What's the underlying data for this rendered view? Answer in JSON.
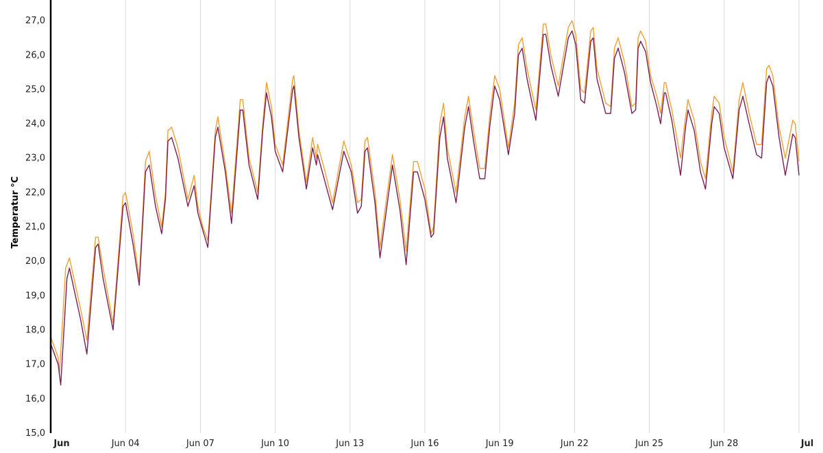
{
  "chart_data": {
    "type": "line",
    "ylabel": "Temperatur °C",
    "ylim": [
      15,
      27.6
    ],
    "y_ticks": [
      "15,0",
      "16,0",
      "17,0",
      "18,0",
      "19,0",
      "20,0",
      "21,0",
      "22,0",
      "23,0",
      "24,0",
      "25,0",
      "26,0",
      "27,0"
    ],
    "x_range_days": [
      1,
      31
    ],
    "x_ticks": [
      {
        "label": "Jun",
        "day": 1,
        "bold": true
      },
      {
        "label": "Jun 04",
        "day": 4,
        "bold": false
      },
      {
        "label": "Jun 07",
        "day": 7,
        "bold": false
      },
      {
        "label": "Jun 10",
        "day": 10,
        "bold": false
      },
      {
        "label": "Jun 13",
        "day": 13,
        "bold": false
      },
      {
        "label": "Jun 16",
        "day": 16,
        "bold": false
      },
      {
        "label": "Jun 19",
        "day": 19,
        "bold": false
      },
      {
        "label": "Jun 22",
        "day": 22,
        "bold": false
      },
      {
        "label": "Jun 25",
        "day": 25,
        "bold": false
      },
      {
        "label": "Jun 28",
        "day": 28,
        "bold": false
      },
      {
        "label": "Jul",
        "day": 31,
        "bold": true
      }
    ],
    "grid": "vertical",
    "series": [
      {
        "color": "#f0a030",
        "points": [
          [
            1.0,
            17.8
          ],
          [
            1.3,
            17.2
          ],
          [
            1.35,
            16.7
          ],
          [
            1.6,
            19.8
          ],
          [
            1.75,
            20.1
          ],
          [
            2.2,
            18.6
          ],
          [
            2.45,
            17.7
          ],
          [
            2.8,
            20.7
          ],
          [
            2.9,
            20.7
          ],
          [
            3.1,
            19.8
          ],
          [
            3.5,
            18.2
          ],
          [
            3.9,
            21.9
          ],
          [
            4.0,
            22.0
          ],
          [
            4.3,
            20.8
          ],
          [
            4.55,
            19.5
          ],
          [
            4.8,
            22.9
          ],
          [
            4.95,
            23.2
          ],
          [
            5.2,
            21.9
          ],
          [
            5.45,
            21.0
          ],
          [
            5.6,
            22.0
          ],
          [
            5.7,
            23.8
          ],
          [
            5.85,
            23.9
          ],
          [
            6.1,
            23.3
          ],
          [
            6.5,
            21.8
          ],
          [
            6.75,
            22.5
          ],
          [
            6.9,
            21.6
          ],
          [
            7.1,
            21.0
          ],
          [
            7.3,
            20.6
          ],
          [
            7.6,
            23.8
          ],
          [
            7.7,
            24.2
          ],
          [
            8.0,
            22.8
          ],
          [
            8.25,
            21.4
          ],
          [
            8.6,
            24.7
          ],
          [
            8.7,
            24.7
          ],
          [
            8.95,
            23.0
          ],
          [
            9.3,
            22.0
          ],
          [
            9.5,
            24.0
          ],
          [
            9.65,
            25.2
          ],
          [
            9.85,
            24.5
          ],
          [
            10.0,
            23.4
          ],
          [
            10.3,
            22.8
          ],
          [
            10.7,
            25.3
          ],
          [
            10.75,
            25.4
          ],
          [
            10.95,
            23.8
          ],
          [
            11.25,
            22.3
          ],
          [
            11.5,
            23.6
          ],
          [
            11.65,
            23.0
          ],
          [
            11.7,
            23.4
          ],
          [
            12.0,
            22.6
          ],
          [
            12.3,
            21.7
          ],
          [
            12.75,
            23.5
          ],
          [
            13.05,
            22.8
          ],
          [
            13.3,
            21.7
          ],
          [
            13.45,
            21.8
          ],
          [
            13.6,
            23.5
          ],
          [
            13.7,
            23.6
          ],
          [
            14.0,
            22.0
          ],
          [
            14.2,
            20.4
          ],
          [
            14.7,
            23.1
          ],
          [
            15.0,
            21.8
          ],
          [
            15.25,
            20.3
          ],
          [
            15.55,
            22.9
          ],
          [
            15.7,
            22.9
          ],
          [
            16.0,
            22.1
          ],
          [
            16.25,
            20.8
          ],
          [
            16.35,
            21.0
          ],
          [
            16.6,
            24.0
          ],
          [
            16.75,
            24.6
          ],
          [
            16.9,
            23.3
          ],
          [
            17.25,
            22.0
          ],
          [
            17.35,
            22.6
          ],
          [
            17.6,
            24.2
          ],
          [
            17.75,
            24.8
          ],
          [
            17.95,
            23.8
          ],
          [
            18.2,
            22.7
          ],
          [
            18.4,
            22.7
          ],
          [
            18.6,
            24.2
          ],
          [
            18.8,
            25.4
          ],
          [
            19.0,
            25.0
          ],
          [
            19.35,
            23.3
          ],
          [
            19.6,
            24.6
          ],
          [
            19.75,
            26.3
          ],
          [
            19.9,
            26.5
          ],
          [
            20.1,
            25.6
          ],
          [
            20.3,
            24.9
          ],
          [
            20.45,
            24.4
          ],
          [
            20.75,
            26.9
          ],
          [
            20.85,
            26.9
          ],
          [
            21.05,
            26.0
          ],
          [
            21.35,
            25.1
          ],
          [
            21.75,
            26.8
          ],
          [
            21.9,
            27.0
          ],
          [
            22.05,
            26.6
          ],
          [
            22.25,
            25.0
          ],
          [
            22.4,
            24.9
          ],
          [
            22.65,
            26.7
          ],
          [
            22.75,
            26.8
          ],
          [
            22.9,
            25.6
          ],
          [
            23.25,
            24.6
          ],
          [
            23.45,
            24.5
          ],
          [
            23.6,
            26.2
          ],
          [
            23.75,
            26.5
          ],
          [
            24.0,
            25.8
          ],
          [
            24.3,
            24.5
          ],
          [
            24.45,
            24.6
          ],
          [
            24.55,
            26.5
          ],
          [
            24.65,
            26.7
          ],
          [
            24.85,
            26.4
          ],
          [
            25.05,
            25.4
          ],
          [
            25.3,
            24.8
          ],
          [
            25.45,
            24.3
          ],
          [
            25.6,
            25.2
          ],
          [
            25.65,
            25.2
          ],
          [
            25.9,
            24.4
          ],
          [
            26.25,
            23.0
          ],
          [
            26.45,
            24.2
          ],
          [
            26.55,
            24.7
          ],
          [
            26.8,
            24.1
          ],
          [
            27.05,
            22.9
          ],
          [
            27.25,
            22.4
          ],
          [
            27.5,
            24.3
          ],
          [
            27.6,
            24.8
          ],
          [
            27.8,
            24.6
          ],
          [
            28.0,
            23.6
          ],
          [
            28.35,
            22.6
          ],
          [
            28.6,
            24.7
          ],
          [
            28.75,
            25.2
          ],
          [
            29.0,
            24.3
          ],
          [
            29.3,
            23.4
          ],
          [
            29.5,
            23.4
          ],
          [
            29.7,
            25.6
          ],
          [
            29.8,
            25.7
          ],
          [
            29.95,
            25.4
          ],
          [
            30.2,
            23.9
          ],
          [
            30.45,
            23.0
          ],
          [
            30.75,
            24.1
          ],
          [
            30.85,
            24.0
          ],
          [
            31.0,
            22.9
          ]
        ]
      },
      {
        "color": "#7a1e55",
        "points": [
          [
            1.0,
            17.6
          ],
          [
            1.3,
            17.0
          ],
          [
            1.4,
            16.4
          ],
          [
            1.65,
            19.5
          ],
          [
            1.75,
            19.8
          ],
          [
            2.2,
            18.3
          ],
          [
            2.45,
            17.3
          ],
          [
            2.8,
            20.4
          ],
          [
            2.9,
            20.5
          ],
          [
            3.1,
            19.5
          ],
          [
            3.5,
            18.0
          ],
          [
            3.9,
            21.6
          ],
          [
            4.0,
            21.7
          ],
          [
            4.3,
            20.5
          ],
          [
            4.55,
            19.3
          ],
          [
            4.8,
            22.6
          ],
          [
            4.95,
            22.8
          ],
          [
            5.2,
            21.6
          ],
          [
            5.45,
            20.8
          ],
          [
            5.6,
            21.8
          ],
          [
            5.7,
            23.5
          ],
          [
            5.85,
            23.6
          ],
          [
            6.1,
            23.0
          ],
          [
            6.5,
            21.6
          ],
          [
            6.75,
            22.2
          ],
          [
            6.9,
            21.4
          ],
          [
            7.1,
            20.9
          ],
          [
            7.3,
            20.4
          ],
          [
            7.6,
            23.6
          ],
          [
            7.7,
            23.9
          ],
          [
            8.0,
            22.6
          ],
          [
            8.25,
            21.1
          ],
          [
            8.6,
            24.4
          ],
          [
            8.7,
            24.4
          ],
          [
            8.95,
            22.8
          ],
          [
            9.3,
            21.8
          ],
          [
            9.5,
            23.8
          ],
          [
            9.65,
            24.9
          ],
          [
            9.85,
            24.2
          ],
          [
            10.0,
            23.2
          ],
          [
            10.3,
            22.6
          ],
          [
            10.7,
            25.0
          ],
          [
            10.75,
            25.1
          ],
          [
            10.95,
            23.6
          ],
          [
            11.25,
            22.1
          ],
          [
            11.5,
            23.3
          ],
          [
            11.65,
            22.8
          ],
          [
            11.7,
            23.1
          ],
          [
            12.0,
            22.3
          ],
          [
            12.3,
            21.5
          ],
          [
            12.75,
            23.2
          ],
          [
            13.05,
            22.6
          ],
          [
            13.3,
            21.4
          ],
          [
            13.45,
            21.6
          ],
          [
            13.6,
            23.2
          ],
          [
            13.7,
            23.3
          ],
          [
            14.0,
            21.7
          ],
          [
            14.2,
            20.1
          ],
          [
            14.7,
            22.8
          ],
          [
            15.0,
            21.5
          ],
          [
            15.25,
            19.9
          ],
          [
            15.55,
            22.6
          ],
          [
            15.7,
            22.6
          ],
          [
            16.0,
            21.8
          ],
          [
            16.25,
            20.7
          ],
          [
            16.35,
            20.8
          ],
          [
            16.6,
            23.6
          ],
          [
            16.75,
            24.2
          ],
          [
            16.9,
            23.0
          ],
          [
            17.25,
            21.7
          ],
          [
            17.35,
            22.3
          ],
          [
            17.6,
            23.9
          ],
          [
            17.75,
            24.5
          ],
          [
            17.95,
            23.5
          ],
          [
            18.2,
            22.4
          ],
          [
            18.4,
            22.4
          ],
          [
            18.6,
            23.9
          ],
          [
            18.8,
            25.1
          ],
          [
            19.0,
            24.7
          ],
          [
            19.35,
            23.1
          ],
          [
            19.6,
            24.3
          ],
          [
            19.75,
            26.0
          ],
          [
            19.9,
            26.2
          ],
          [
            20.1,
            25.3
          ],
          [
            20.3,
            24.6
          ],
          [
            20.45,
            24.1
          ],
          [
            20.75,
            26.6
          ],
          [
            20.85,
            26.6
          ],
          [
            21.05,
            25.7
          ],
          [
            21.35,
            24.8
          ],
          [
            21.75,
            26.5
          ],
          [
            21.9,
            26.7
          ],
          [
            22.05,
            26.3
          ],
          [
            22.25,
            24.7
          ],
          [
            22.4,
            24.6
          ],
          [
            22.65,
            26.4
          ],
          [
            22.75,
            26.5
          ],
          [
            22.9,
            25.3
          ],
          [
            23.25,
            24.3
          ],
          [
            23.45,
            24.3
          ],
          [
            23.6,
            25.9
          ],
          [
            23.75,
            26.2
          ],
          [
            24.0,
            25.5
          ],
          [
            24.3,
            24.3
          ],
          [
            24.45,
            24.4
          ],
          [
            24.55,
            26.2
          ],
          [
            24.65,
            26.4
          ],
          [
            24.85,
            26.1
          ],
          [
            25.05,
            25.2
          ],
          [
            25.3,
            24.5
          ],
          [
            25.45,
            24.0
          ],
          [
            25.6,
            24.9
          ],
          [
            25.65,
            24.9
          ],
          [
            25.9,
            24.1
          ],
          [
            26.25,
            22.5
          ],
          [
            26.45,
            23.9
          ],
          [
            26.55,
            24.4
          ],
          [
            26.8,
            23.8
          ],
          [
            27.05,
            22.6
          ],
          [
            27.25,
            22.1
          ],
          [
            27.5,
            24.0
          ],
          [
            27.6,
            24.5
          ],
          [
            27.8,
            24.3
          ],
          [
            28.0,
            23.3
          ],
          [
            28.35,
            22.4
          ],
          [
            28.6,
            24.4
          ],
          [
            28.75,
            24.8
          ],
          [
            29.0,
            24.0
          ],
          [
            29.3,
            23.1
          ],
          [
            29.5,
            23.0
          ],
          [
            29.7,
            25.2
          ],
          [
            29.8,
            25.4
          ],
          [
            29.95,
            25.1
          ],
          [
            30.2,
            23.6
          ],
          [
            30.45,
            22.5
          ],
          [
            30.75,
            23.7
          ],
          [
            30.85,
            23.6
          ],
          [
            31.0,
            22.5
          ]
        ]
      }
    ]
  }
}
